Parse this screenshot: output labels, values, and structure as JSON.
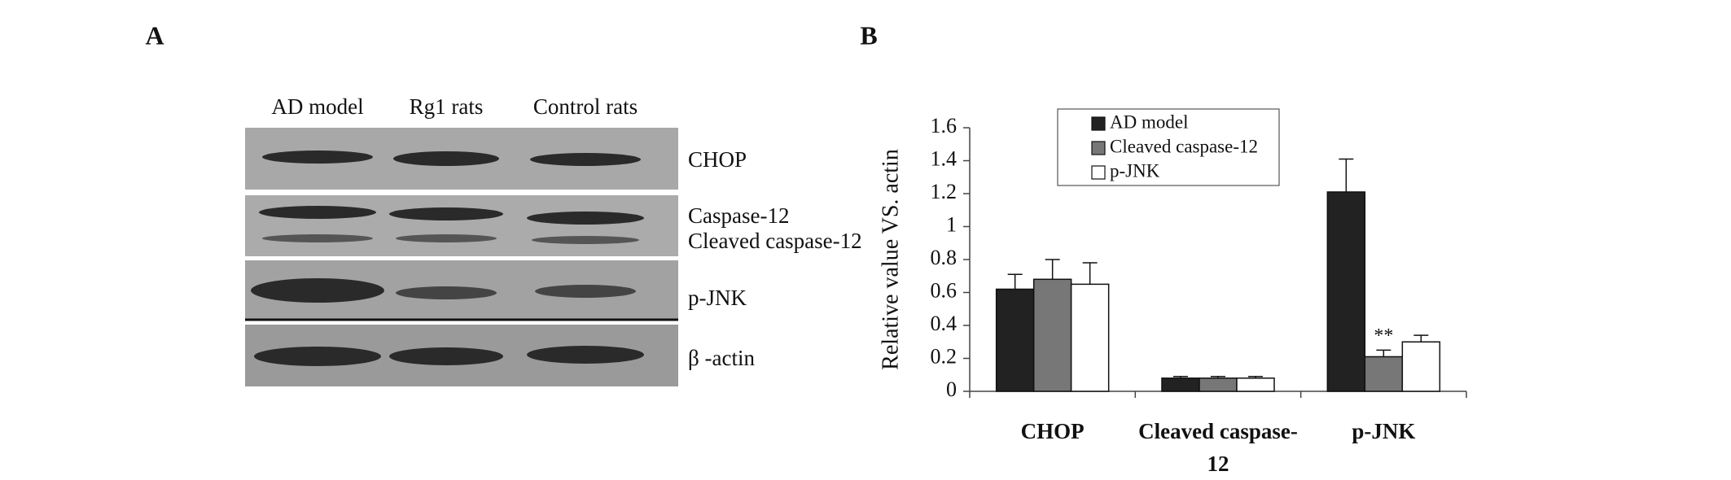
{
  "panel_labels": [
    "A",
    "B"
  ],
  "blot": {
    "lanes": [
      "AD model",
      "Rg1 rats",
      "Control rats"
    ],
    "rows": [
      "CHOP",
      "Caspase-12",
      "Cleaved caspase-12",
      "p-JNK",
      "β -actin"
    ]
  },
  "chart_data": {
    "type": "bar",
    "y_label": "Relative value VS. actin",
    "categories": [
      "CHOP",
      "Cleaved caspase-12",
      "p-JNK"
    ],
    "series": [
      {
        "name": "AD model",
        "color": "#222222",
        "values": [
          0.62,
          0.08,
          1.21
        ],
        "errors": [
          0.09,
          0.01,
          0.2
        ]
      },
      {
        "name": "Cleaved caspase-12",
        "color": "#777777",
        "values": [
          0.68,
          0.08,
          0.21
        ],
        "errors": [
          0.12,
          0.01,
          0.04
        ]
      },
      {
        "name": "p-JNK",
        "color": "#ffffff",
        "values": [
          0.65,
          0.08,
          0.3
        ],
        "errors": [
          0.13,
          0.01,
          0.04
        ]
      }
    ],
    "annotation": "**",
    "ylim": [
      0,
      1.6
    ],
    "yticks": [
      0,
      0.2,
      0.4,
      0.6,
      0.8,
      1,
      1.2,
      1.4,
      1.6
    ],
    "legend": "top"
  }
}
